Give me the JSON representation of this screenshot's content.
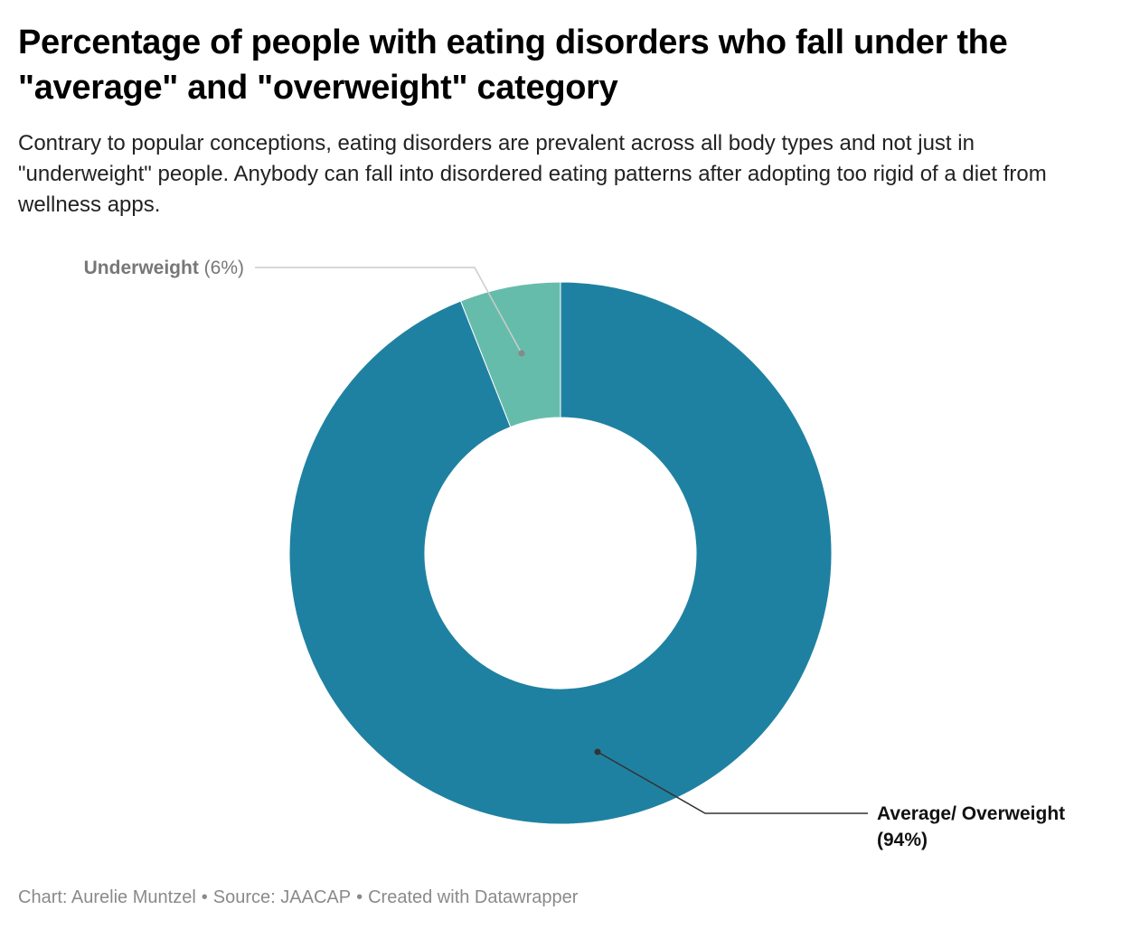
{
  "header": {
    "title": "Percentage of people with eating disorders who fall under the \"average\" and \"overweight\" category",
    "subtitle": "Contrary to popular conceptions, eating disorders are prevalent across all body types and not just in \"underweight\" people. Anybody can fall into disordered eating patterns after adopting too rigid of a diet from wellness apps."
  },
  "chart_data": {
    "type": "pie",
    "variant": "donut",
    "start": "12 o'clock, clockwise",
    "slices": [
      {
        "name": "Average/ Overweight",
        "value": 94,
        "value_label": "(94%)",
        "color": "#1f81a1",
        "label_color": "#111111"
      },
      {
        "name": "Underweight",
        "value": 6,
        "value_label": "(6%)",
        "color": "#66bcab",
        "label_color": "#777777"
      }
    ],
    "unit": "%"
  },
  "footer": {
    "chart_credit": "Chart: Aurelie Muntzel",
    "source": "Source: JAACAP",
    "created_with": "Created with Datawrapper",
    "separator": "•"
  }
}
